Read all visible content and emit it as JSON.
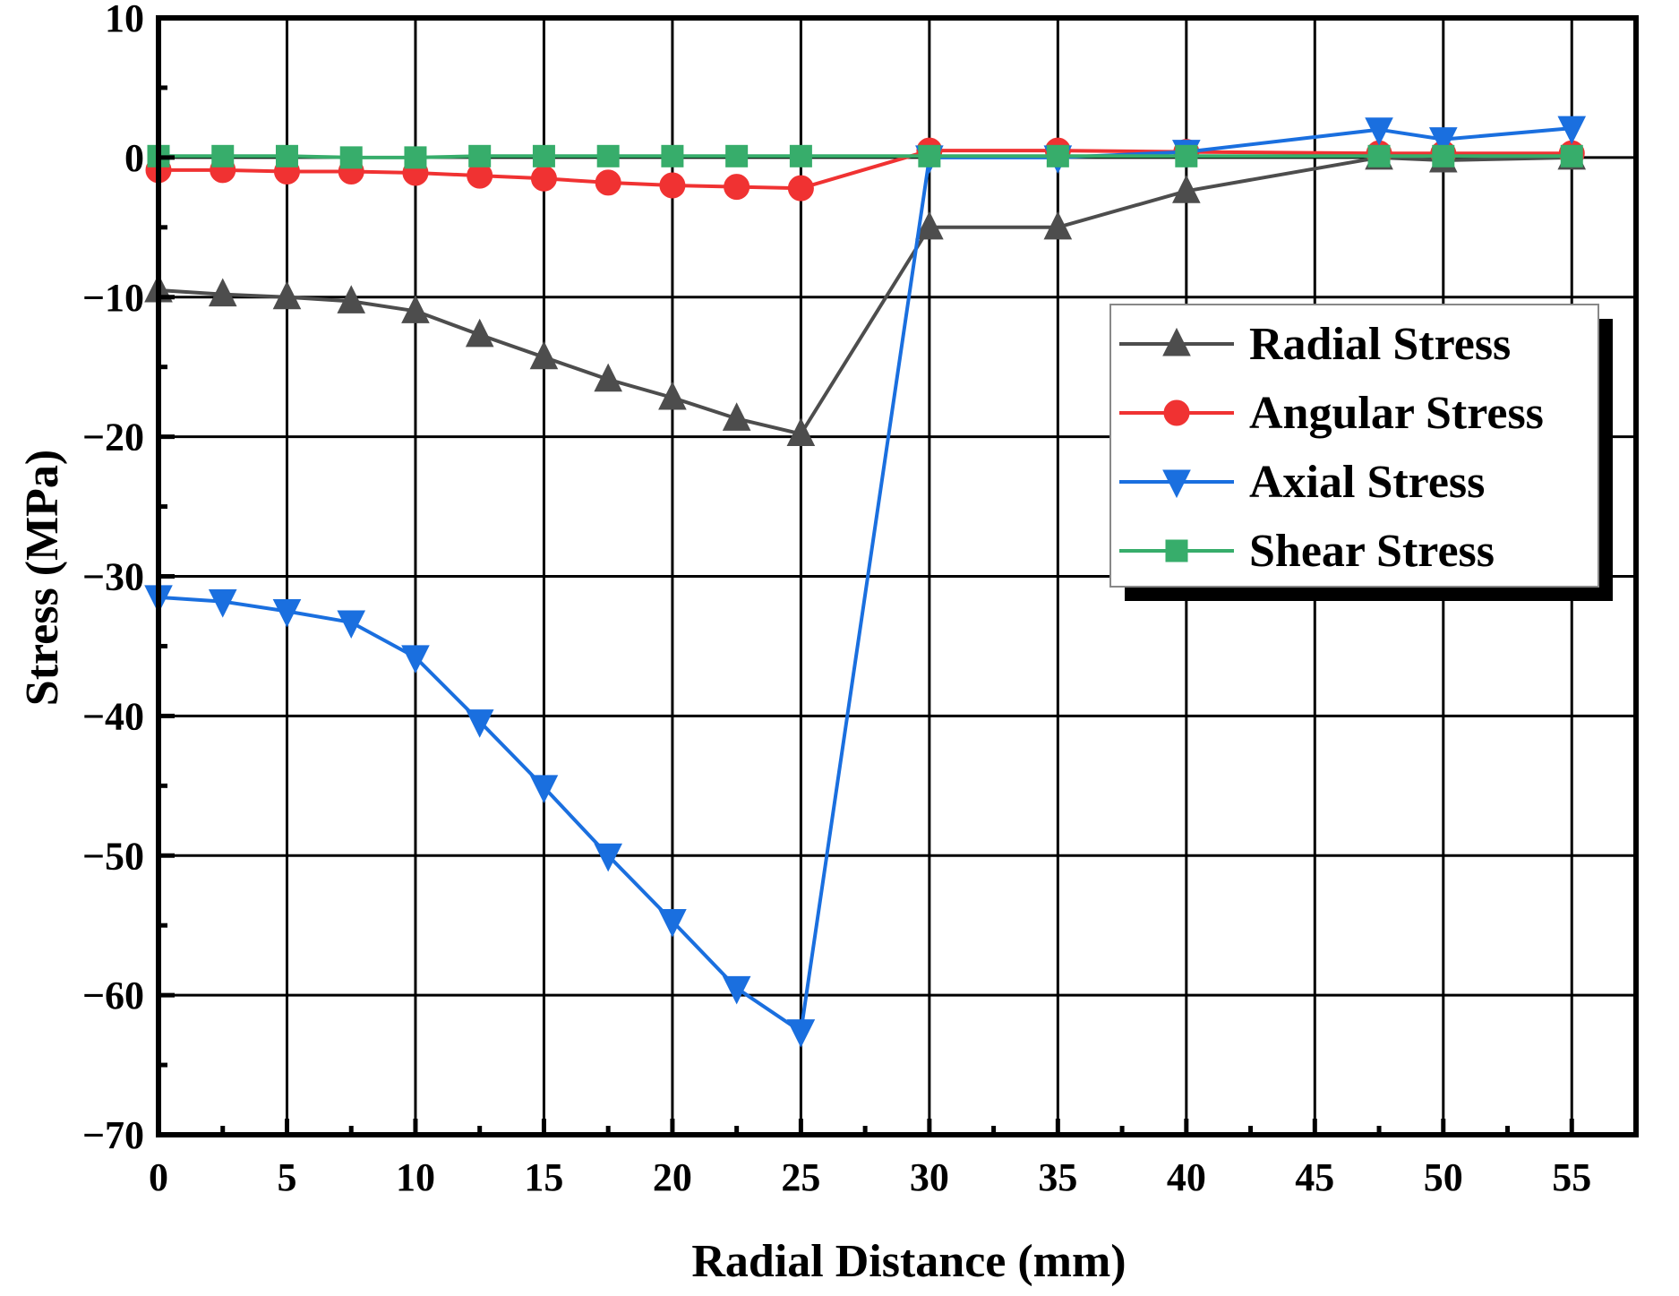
{
  "chart_data": {
    "type": "line",
    "title": "",
    "xlabel": "Radial Distance (mm)",
    "ylabel": "Stress (MPa)",
    "xlim": [
      0,
      57.5
    ],
    "ylim": [
      -70,
      10
    ],
    "xticks": [
      0,
      5,
      10,
      15,
      20,
      25,
      30,
      35,
      40,
      45,
      50,
      55
    ],
    "yticks": [
      10,
      0,
      -10,
      -20,
      -30,
      -40,
      -50,
      -60,
      -70
    ],
    "xtick_labels": [
      "0",
      "5",
      "10",
      "15",
      "20",
      "25",
      "30",
      "35",
      "40",
      "45",
      "50",
      "55"
    ],
    "ytick_labels": [
      "10",
      "0",
      "−10",
      "−20",
      "−30",
      "−40",
      "−50",
      "−60",
      "−70"
    ],
    "grid": true,
    "legend_position": "upper-right",
    "x": [
      0,
      2.5,
      5,
      7.5,
      10,
      12.5,
      15,
      17.5,
      20,
      22.5,
      25,
      30,
      35,
      40,
      47.5,
      50,
      55
    ],
    "series": [
      {
        "name": "Radial Stress",
        "color": "#4d4d4d",
        "marker": "triangle-up",
        "values": [
          -9.5,
          -9.8,
          -10.0,
          -10.3,
          -11.0,
          -12.7,
          -14.3,
          -15.9,
          -17.2,
          -18.7,
          -19.8,
          -5.0,
          -5.0,
          -2.4,
          0.0,
          -0.2,
          0.0
        ]
      },
      {
        "name": "Angular Stress",
        "color": "#f03232",
        "marker": "circle",
        "values": [
          -0.9,
          -0.9,
          -1.0,
          -1.0,
          -1.1,
          -1.3,
          -1.5,
          -1.8,
          -2.0,
          -2.1,
          -2.2,
          0.5,
          0.5,
          0.4,
          0.3,
          0.3,
          0.3
        ]
      },
      {
        "name": "Axial Stress",
        "color": "#1a6fdf",
        "marker": "triangle-down",
        "values": [
          -31.5,
          -31.8,
          -32.5,
          -33.3,
          -35.8,
          -40.4,
          -45.1,
          -50.0,
          -54.7,
          -59.5,
          -62.6,
          0.0,
          0.0,
          0.4,
          2.0,
          1.3,
          2.1
        ]
      },
      {
        "name": "Shear Stress",
        "color": "#37ad6b",
        "marker": "square",
        "values": [
          0.1,
          0.1,
          0.1,
          0.0,
          0.0,
          0.1,
          0.1,
          0.1,
          0.1,
          0.1,
          0.1,
          0.1,
          0.1,
          0.1,
          0.1,
          0.1,
          0.1
        ]
      }
    ]
  }
}
